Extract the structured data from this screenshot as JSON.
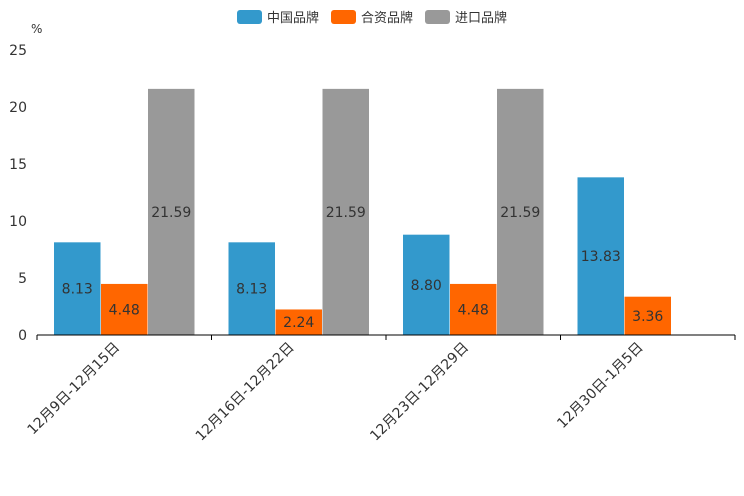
{
  "chart_data": {
    "type": "bar",
    "title": "",
    "ylabel": "%",
    "xlabel": "",
    "ylim": [
      0,
      25
    ],
    "yticks": [
      0,
      5,
      10,
      15,
      20,
      25
    ],
    "categories": [
      "12月9日-12月15日",
      "12月16日-12月22日",
      "12月23日-12月29日",
      "12月30日-1月5日"
    ],
    "series": [
      {
        "name": "中国品牌",
        "color": "#3399cc",
        "values": [
          8.13,
          8.13,
          8.8,
          13.83
        ],
        "labels": [
          "8.13",
          "8.13",
          "8.80",
          "13.83"
        ]
      },
      {
        "name": "合资品牌",
        "color": "#ff6600",
        "values": [
          4.48,
          2.24,
          4.48,
          3.36
        ],
        "labels": [
          "4.48",
          "2.24",
          "4.48",
          "3.36"
        ]
      },
      {
        "name": "进口品牌",
        "color": "#999999",
        "values": [
          21.59,
          21.59,
          21.59,
          null
        ],
        "labels": [
          "21.59",
          "21.59",
          "21.59",
          null
        ]
      }
    ],
    "legend_position": "top-center",
    "grid": false
  }
}
